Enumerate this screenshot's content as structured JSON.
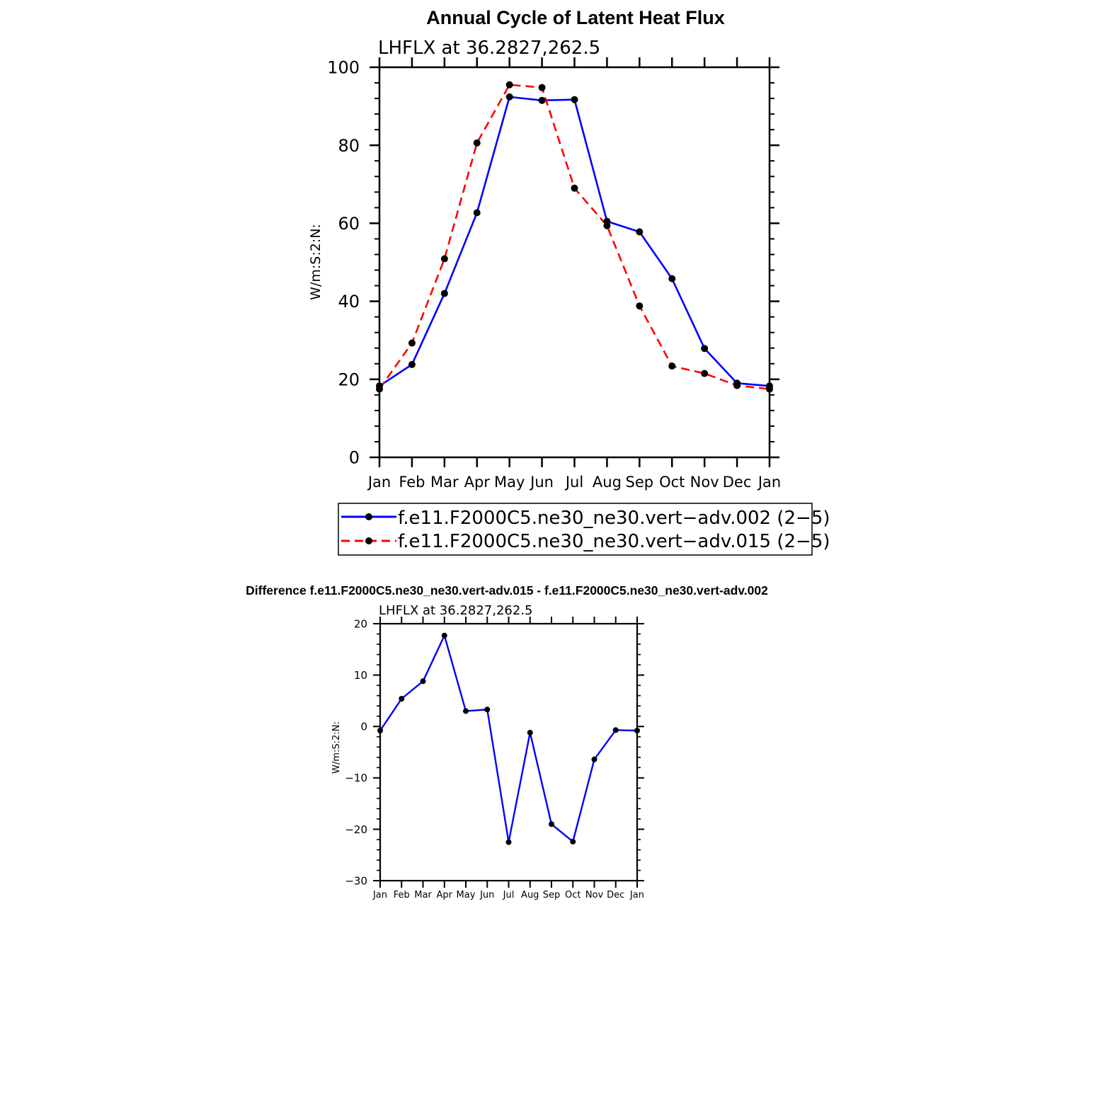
{
  "colors": {
    "series_a": "#0000ff",
    "series_b": "#ff0000",
    "marker": "#000000"
  },
  "charts": [
    {
      "title": "Annual Cycle of Latent Heat Flux",
      "subtitle": "LHFLX at 36.2827,262.5",
      "ylabel": "W/m:S:2:N:"
    },
    {
      "title": "Difference f.e11.F2000C5.ne30_ne30.vert-adv.015 - f.e11.F2000C5.ne30_ne30.vert-adv.002",
      "subtitle": "LHFLX at 36.2827,262.5",
      "ylabel": "W/m:S:2:N:"
    }
  ],
  "legend": {
    "entries": [
      "f.e11.F2000C5.ne30_ne30.vert−adv.002 (2−5)",
      "f.e11.F2000C5.ne30_ne30.vert−adv.015 (2−5)"
    ]
  },
  "chart_data": [
    {
      "type": "line",
      "title": "Annual Cycle of Latent Heat Flux",
      "subtitle": "LHFLX at 36.2827,262.5",
      "ylabel": "W/m:S:2:N:",
      "categories": [
        "Jan",
        "Feb",
        "Mar",
        "Apr",
        "May",
        "Jun",
        "Jul",
        "Aug",
        "Sep",
        "Oct",
        "Nov",
        "Dec",
        "Jan"
      ],
      "ylim": [
        0,
        100
      ],
      "yticks": [
        0,
        20,
        40,
        60,
        80,
        100
      ],
      "grid": false,
      "legend_position": "bottom",
      "series": [
        {
          "name": "f.e11.F2000C5.ne30_ne30.vert−adv.002 (2−5)",
          "color": "#0000ff",
          "dash": "solid",
          "values": [
            18.3,
            23.8,
            42.0,
            62.7,
            92.4,
            91.5,
            91.7,
            60.5,
            57.8,
            45.8,
            27.9,
            19.0,
            18.3
          ]
        },
        {
          "name": "f.e11.F2000C5.ne30_ne30.vert−adv.015 (2−5)",
          "color": "#ff0000",
          "dash": "dashed",
          "values": [
            17.5,
            29.3,
            50.9,
            80.6,
            95.5,
            94.8,
            69.0,
            59.4,
            38.8,
            23.4,
            21.5,
            18.4,
            17.5
          ]
        }
      ]
    },
    {
      "type": "line",
      "title": "Difference f.e11.F2000C5.ne30_ne30.vert-adv.015 - f.e11.F2000C5.ne30_ne30.vert-adv.002",
      "subtitle": "LHFLX at 36.2827,262.5",
      "ylabel": "W/m:S:2:N:",
      "categories": [
        "Jan",
        "Feb",
        "Mar",
        "Apr",
        "May",
        "Jun",
        "Jul",
        "Aug",
        "Sep",
        "Oct",
        "Nov",
        "Dec",
        "Jan"
      ],
      "ylim": [
        -30,
        20
      ],
      "yticks": [
        -30,
        -20,
        -10,
        0,
        10,
        20
      ],
      "ytick_labels": [
        "−30",
        "−20",
        "−10",
        "0",
        "10",
        "20"
      ],
      "grid": false,
      "series": [
        {
          "color": "#0000ff",
          "dash": "solid",
          "values": [
            -0.8,
            5.4,
            8.8,
            17.7,
            3.0,
            3.3,
            -22.5,
            -1.2,
            -19.0,
            -22.4,
            -6.4,
            -0.7,
            -0.8
          ]
        }
      ]
    }
  ]
}
